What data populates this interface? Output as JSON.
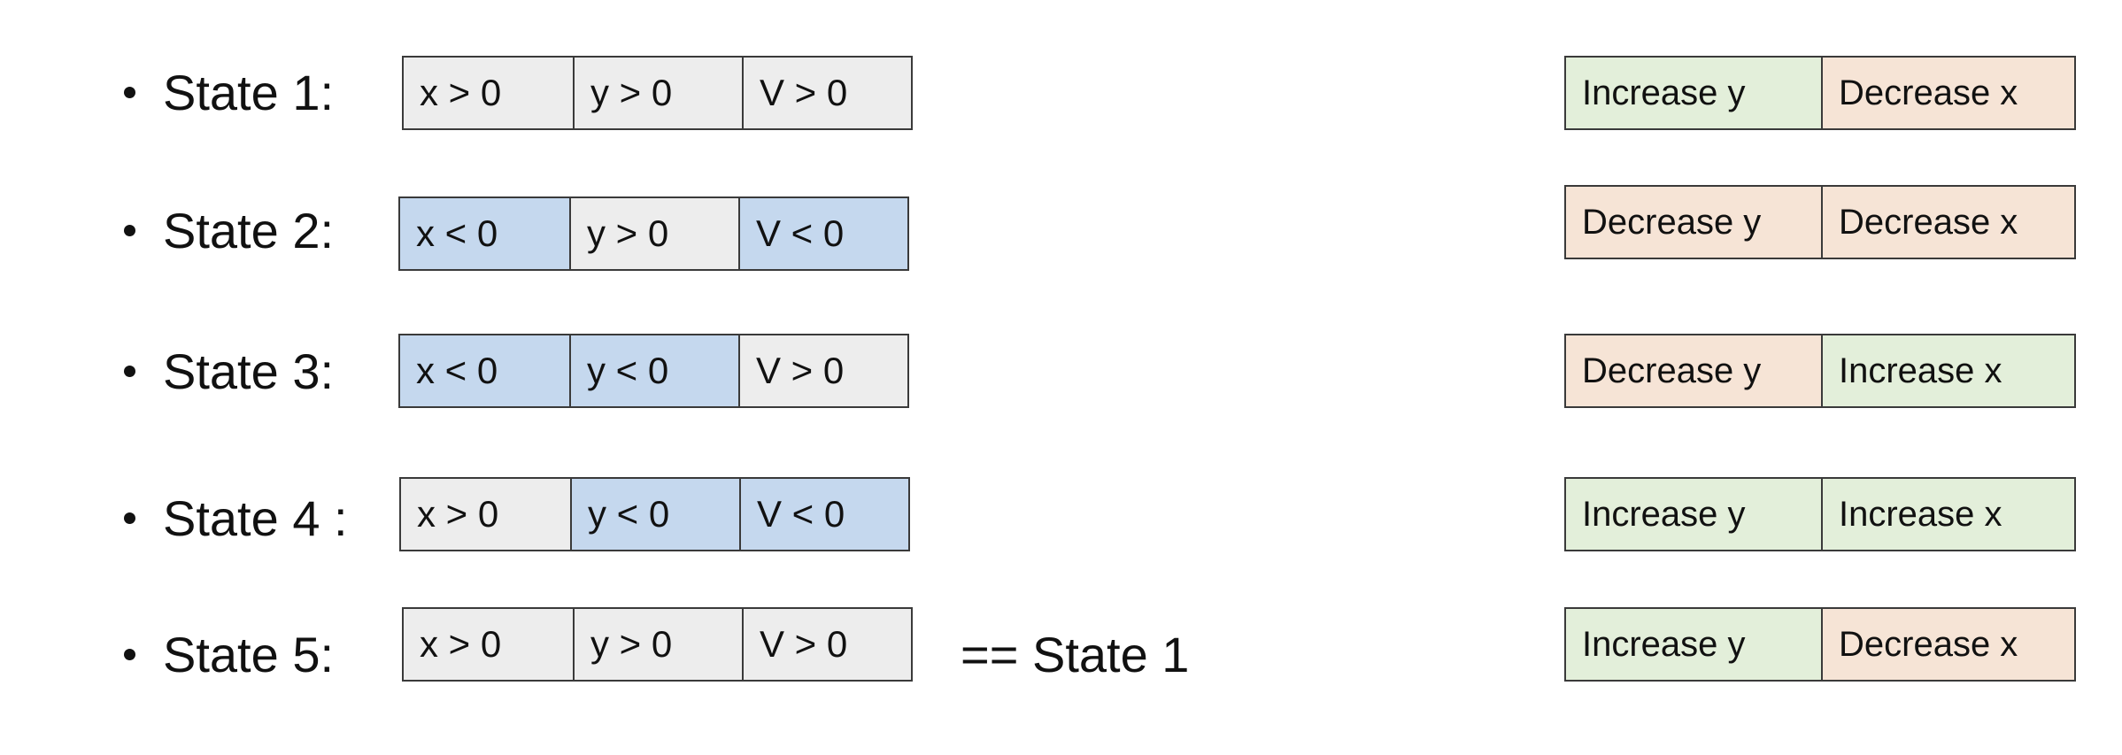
{
  "colors": {
    "neutral": "#ededed",
    "negative": "#c5d8ee",
    "increase": "#e3efda",
    "decrease": "#f6e4d6",
    "border": "#3a3a3a"
  },
  "states": [
    {
      "label": "State 1:",
      "conditions": [
        {
          "text": "x > 0",
          "tone": "neutral"
        },
        {
          "text": "y > 0",
          "tone": "neutral"
        },
        {
          "text": "V > 0",
          "tone": "neutral"
        }
      ],
      "note": "",
      "actions": [
        {
          "text": "Increase y",
          "tone": "increase"
        },
        {
          "text": "Decrease x",
          "tone": "decrease"
        }
      ]
    },
    {
      "label": "State 2:",
      "conditions": [
        {
          "text": "x < 0",
          "tone": "negative"
        },
        {
          "text": "y > 0",
          "tone": "neutral"
        },
        {
          "text": "V < 0",
          "tone": "negative"
        }
      ],
      "note": "",
      "actions": [
        {
          "text": "Decrease y",
          "tone": "decrease"
        },
        {
          "text": "Decrease x",
          "tone": "decrease"
        }
      ]
    },
    {
      "label": "State 3:",
      "conditions": [
        {
          "text": "x < 0",
          "tone": "negative"
        },
        {
          "text": "y < 0",
          "tone": "negative"
        },
        {
          "text": "V > 0",
          "tone": "neutral"
        }
      ],
      "note": "",
      "actions": [
        {
          "text": "Decrease y",
          "tone": "decrease"
        },
        {
          "text": "Increase x",
          "tone": "increase"
        }
      ]
    },
    {
      "label": "State 4 :",
      "conditions": [
        {
          "text": "x > 0",
          "tone": "neutral"
        },
        {
          "text": "y < 0",
          "tone": "negative"
        },
        {
          "text": "V < 0",
          "tone": "negative"
        }
      ],
      "note": "",
      "actions": [
        {
          "text": "Increase y",
          "tone": "increase"
        },
        {
          "text": "Increase x",
          "tone": "increase"
        }
      ]
    },
    {
      "label": "State 5:",
      "conditions": [
        {
          "text": "x > 0",
          "tone": "neutral"
        },
        {
          "text": "y > 0",
          "tone": "neutral"
        },
        {
          "text": "V > 0",
          "tone": "neutral"
        }
      ],
      "note": "== State 1",
      "actions": [
        {
          "text": "Increase y",
          "tone": "increase"
        },
        {
          "text": "Decrease x",
          "tone": "decrease"
        }
      ]
    }
  ]
}
